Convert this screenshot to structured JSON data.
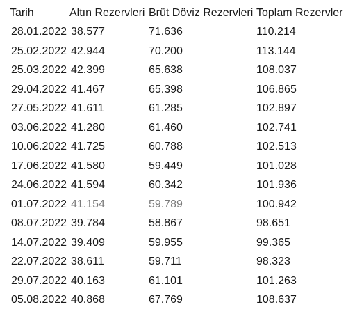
{
  "table": {
    "headers": [
      "Tarih",
      "Altın Rezervleri",
      "Brüt Döviz Rezervleri",
      "Toplam Rezervler"
    ],
    "rows": [
      [
        "28.01.2022",
        "38.577",
        "71.636",
        "110.214"
      ],
      [
        "25.02.2022",
        "42.944",
        "70.200",
        "113.144"
      ],
      [
        "25.03.2022",
        "42.399",
        "65.638",
        "108.037"
      ],
      [
        "29.04.2022",
        "41.467",
        "65.398",
        "106.865"
      ],
      [
        "27.05.2022",
        "41.611",
        "61.285",
        "102.897"
      ],
      [
        "03.06.2022",
        "41.280",
        "61.460",
        "102.741"
      ],
      [
        "10.06.2022",
        "41.725",
        "60.788",
        "102.513"
      ],
      [
        "17.06.2022",
        "41.580",
        "59.449",
        "101.028"
      ],
      [
        "24.06.2022",
        "41.594",
        "60.342",
        "101.936"
      ],
      [
        "01.07.2022",
        "41.154",
        "59.789",
        "100.942"
      ],
      [
        "08.07.2022",
        "39.784",
        "58.867",
        "98.651"
      ],
      [
        "14.07.2022",
        "39.409",
        "59.955",
        "99.365"
      ],
      [
        "22.07.2022",
        "38.611",
        "59.711",
        "98.323"
      ],
      [
        "29.07.2022",
        "40.163",
        "61.101",
        "101.263"
      ],
      [
        "05.08.2022",
        "40.868",
        "67.769",
        "108.637"
      ]
    ]
  }
}
